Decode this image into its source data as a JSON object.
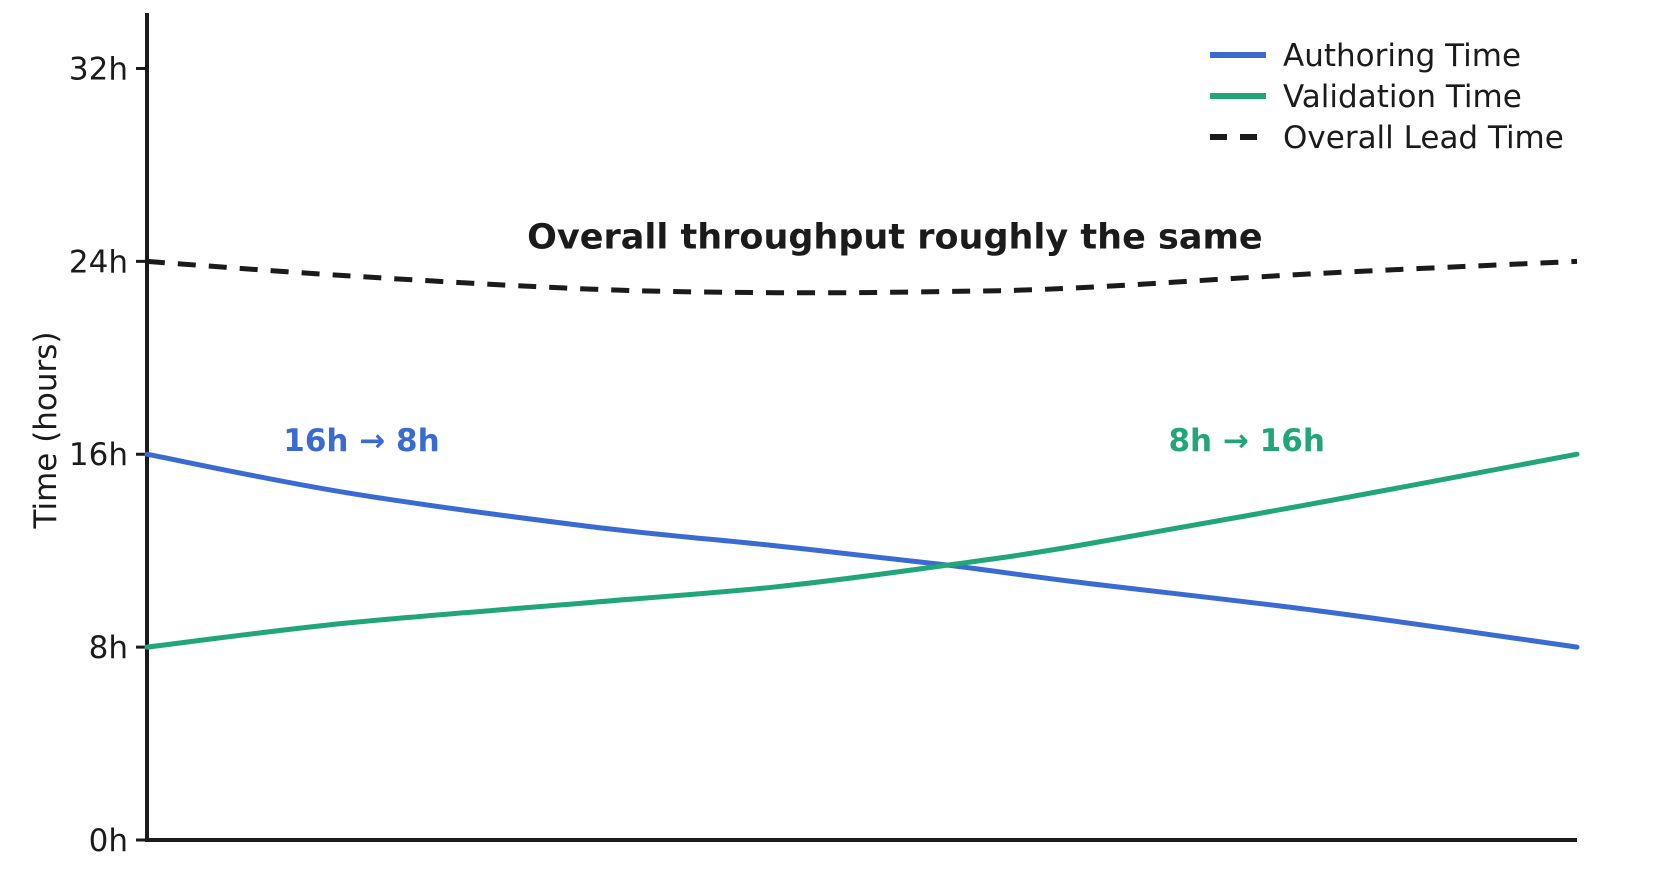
{
  "chart_data": {
    "type": "line",
    "title": "",
    "xlabel": "",
    "ylabel": "Time (hours)",
    "ylim": [
      0,
      34
    ],
    "grid": false,
    "xticks": [],
    "yticks": [
      {
        "label": "0h",
        "value": 0
      },
      {
        "label": "8h",
        "value": 8
      },
      {
        "label": "16h",
        "value": 16
      },
      {
        "label": "24h",
        "value": 24
      },
      {
        "label": "32h",
        "value": 32
      }
    ],
    "x_normalized": [
      0,
      0.14,
      0.31,
      0.44,
      0.56,
      0.65,
      0.82,
      1
    ],
    "series": [
      {
        "name": "Authoring Time",
        "color": "#3A6BD2",
        "style": "solid",
        "start_value_hours": 16,
        "end_value_hours": 8,
        "values": [
          16,
          14.4,
          13.0,
          12.2,
          11.4,
          10.7,
          9.5,
          8
        ]
      },
      {
        "name": "Validation Time",
        "color": "#21A57A",
        "style": "solid",
        "start_value_hours": 8,
        "end_value_hours": 16,
        "values": [
          8,
          9.0,
          9.85,
          10.5,
          11.4,
          12.2,
          14.0,
          16
        ]
      },
      {
        "name": "Overall Lead Time",
        "color": "#1b1b1b",
        "style": "dashed",
        "start_value_hours": 24,
        "end_value_hours": 24,
        "values": [
          24,
          23.4,
          22.85,
          22.7,
          22.75,
          22.9,
          23.5,
          24
        ]
      }
    ],
    "legend": {
      "position": "upper-right",
      "entries": [
        "Authoring Time",
        "Validation Time",
        "Overall Lead Time"
      ]
    },
    "annotations": [
      {
        "text": "Overall throughput roughly the same",
        "color": "#1b1b1b",
        "t": 0.523,
        "value": 25.0
      },
      {
        "text": "16h → 8h",
        "color": "#3A6BD2",
        "t": 0.15,
        "value": 16.55
      },
      {
        "text": "8h → 16h",
        "color": "#21A57A",
        "t": 0.769,
        "value": 16.55
      }
    ]
  }
}
